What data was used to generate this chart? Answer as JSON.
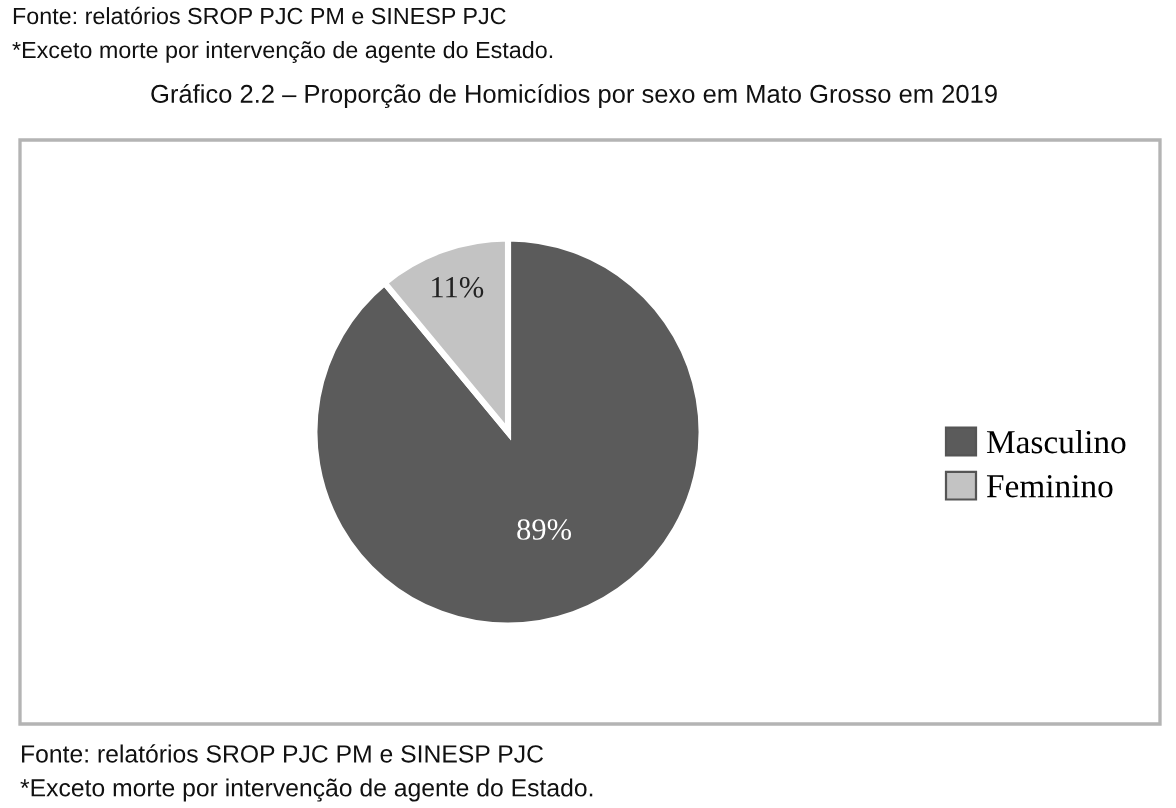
{
  "chart_data": {
    "type": "pie",
    "title": "Gráfico 2.2 – Proporção de Homicídios por sexo em Mato Grosso em 2019",
    "categories": [
      "Masculino",
      "Feminino"
    ],
    "values": [
      89,
      11
    ],
    "colors": [
      "#5b5b5b",
      "#c3c3c3"
    ],
    "value_labels": [
      "89%",
      "11%"
    ],
    "legend": "right",
    "annotations": [
      "Fonte: relatórios SROP PJC PM e SINESP PJC",
      "*Exceto morte por intervenção de agente do Estado.",
      "Fonte: relatórios SROP PJC PM e SINESP PJC",
      "*Exceto morte por intervenção de agente do Estado."
    ]
  }
}
